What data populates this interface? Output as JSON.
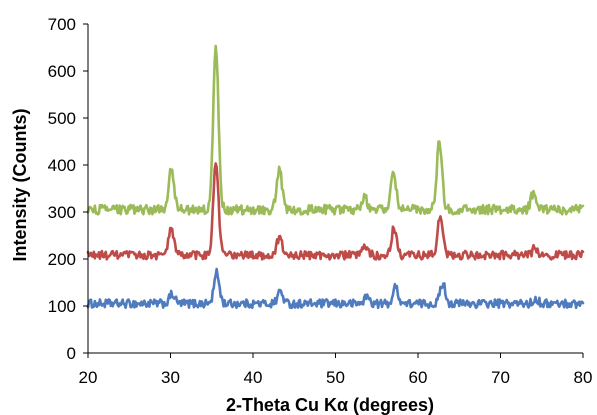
{
  "chart_data": {
    "type": "line",
    "title": "",
    "xlabel": "2-Theta Cu Kα (degrees)",
    "ylabel": "Intensity (Counts)",
    "xlim": [
      20,
      80
    ],
    "ylim": [
      0,
      700
    ],
    "x_ticks": [
      "20",
      "30",
      "40",
      "50",
      "60",
      "70",
      "80"
    ],
    "y_ticks": [
      "0",
      "100",
      "200",
      "300",
      "400",
      "500",
      "600",
      "700"
    ],
    "grid": false,
    "legend": "none",
    "series": [
      {
        "color": "#4F7BBF",
        "baseline": 105,
        "noise": 9,
        "peaks": [
          {
            "x": 30.2,
            "y": 125
          },
          {
            "x": 35.6,
            "y": 170
          },
          {
            "x": 43.3,
            "y": 132
          },
          {
            "x": 53.8,
            "y": 120
          },
          {
            "x": 57.3,
            "y": 140
          },
          {
            "x": 63.0,
            "y": 148
          },
          {
            "x": 74.3,
            "y": 115
          }
        ]
      },
      {
        "color": "#BE4B48",
        "baseline": 208,
        "noise": 9,
        "peaks": [
          {
            "x": 30.1,
            "y": 265
          },
          {
            "x": 35.5,
            "y": 400
          },
          {
            "x": 43.2,
            "y": 245
          },
          {
            "x": 53.6,
            "y": 225
          },
          {
            "x": 57.1,
            "y": 265
          },
          {
            "x": 62.7,
            "y": 290
          },
          {
            "x": 74.2,
            "y": 225
          }
        ]
      },
      {
        "color": "#9BBB59",
        "baseline": 305,
        "noise": 10,
        "peaks": [
          {
            "x": 30.1,
            "y": 395
          },
          {
            "x": 35.5,
            "y": 645
          },
          {
            "x": 43.2,
            "y": 390
          },
          {
            "x": 53.5,
            "y": 335
          },
          {
            "x": 57.0,
            "y": 390
          },
          {
            "x": 62.6,
            "y": 450
          },
          {
            "x": 74.0,
            "y": 340
          }
        ]
      }
    ]
  }
}
